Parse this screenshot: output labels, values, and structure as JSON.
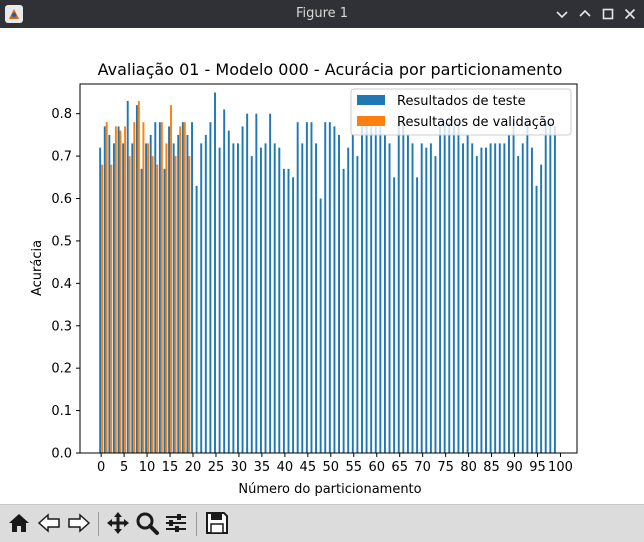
{
  "window": {
    "title": "Figure 1"
  },
  "toolbar": {
    "buttons": [
      "home-icon",
      "back-arrow-icon",
      "forward-arrow-icon",
      "pan-icon",
      "zoom-icon",
      "configure-subplots-icon",
      "save-icon"
    ]
  },
  "colors": {
    "test": "#1f77b4",
    "validation": "#ff7f0e",
    "titlebar": "#2f3136",
    "toolbar": "#dcdcdc"
  },
  "chart_data": {
    "type": "bar",
    "title": "Avaliação 01 - Modelo 000 - Acurácia por particionamento",
    "xlabel": "Número do particionamento",
    "ylabel": "Acurácia",
    "ylim": [
      0,
      0.87
    ],
    "xlim": [
      -4.6,
      103.6
    ],
    "xticks": [
      0,
      5,
      10,
      15,
      20,
      25,
      30,
      35,
      40,
      45,
      50,
      55,
      60,
      65,
      70,
      75,
      80,
      85,
      90,
      95,
      100
    ],
    "yticks": [
      "0.0",
      "0.1",
      "0.2",
      "0.3",
      "0.4",
      "0.5",
      "0.6",
      "0.7",
      "0.8"
    ],
    "legend_position": "upper right",
    "grid": false,
    "series": [
      {
        "name": "Resultados de teste",
        "values": [
          0.72,
          0.77,
          0.75,
          0.73,
          0.77,
          0.73,
          0.83,
          0.73,
          0.82,
          0.67,
          0.73,
          0.75,
          0.78,
          0.78,
          0.67,
          0.77,
          0.73,
          0.75,
          0.78,
          0.75,
          0.78,
          0.63,
          0.73,
          0.75,
          0.78,
          0.85,
          0.72,
          0.81,
          0.76,
          0.73,
          0.73,
          0.77,
          0.8,
          0.7,
          0.8,
          0.72,
          0.73,
          0.8,
          0.73,
          0.72,
          0.67,
          0.67,
          0.65,
          0.78,
          0.73,
          0.78,
          0.78,
          0.73,
          0.6,
          0.78,
          0.78,
          0.77,
          0.75,
          0.67,
          0.72,
          0.75,
          0.7,
          0.78,
          0.78,
          0.78,
          0.77,
          0.77,
          0.75,
          0.73,
          0.65,
          0.78,
          0.78,
          0.75,
          0.73,
          0.65,
          0.73,
          0.72,
          0.73,
          0.7,
          0.77,
          0.78,
          0.78,
          0.77,
          0.78,
          0.73,
          0.75,
          0.73,
          0.7,
          0.72,
          0.72,
          0.73,
          0.73,
          0.73,
          0.73,
          0.75,
          0.78,
          0.7,
          0.73,
          0.78,
          0.72,
          0.63,
          0.68,
          0.78,
          0.78,
          0.77
        ]
      },
      {
        "name": "Resultados de validação",
        "values": [
          0.68,
          0.78,
          0.68,
          0.77,
          0.76,
          0.77,
          0.7,
          0.78,
          0.83,
          0.78,
          0.73,
          0.7,
          0.68,
          0.78,
          0.73,
          0.82,
          0.7,
          0.77,
          0.78,
          0.7
        ]
      }
    ]
  }
}
